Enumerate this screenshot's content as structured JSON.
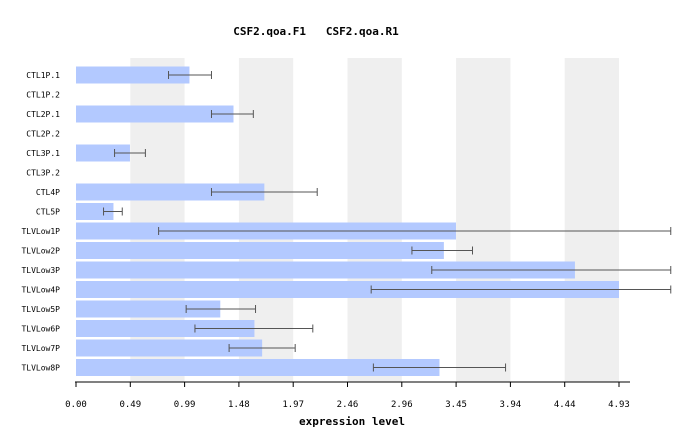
{
  "chart_data": {
    "type": "bar",
    "orientation": "horizontal",
    "title": "CSF2.qoa.F1   CSF2.qoa.R1",
    "xlabel": "expression level",
    "ylabel": "",
    "xlim": [
      0,
      4.93
    ],
    "ticks": [
      "0.00",
      "0.49",
      "0.99",
      "1.48",
      "1.97",
      "2.46",
      "2.96",
      "3.45",
      "3.94",
      "4.44",
      "4.93"
    ],
    "tick_values": [
      0,
      0.493,
      0.986,
      1.479,
      1.972,
      2.465,
      2.958,
      3.451,
      3.944,
      4.437,
      4.93
    ],
    "categories": [
      "CTL1P.1",
      "CTL1P.2",
      "CTL2P.1",
      "CTL2P.2",
      "CTL3P.1",
      "CTL3P.2",
      "CTL4P",
      "CTL5P",
      "TLVLow1P",
      "TLVLow2P",
      "TLVLow3P",
      "TLVLow4P",
      "TLVLow5P",
      "TLVLow6P",
      "TLVLow7P",
      "TLVLow8P"
    ],
    "values": [
      1.03,
      null,
      1.43,
      null,
      0.49,
      null,
      1.71,
      0.34,
      3.45,
      3.34,
      4.53,
      4.93,
      1.31,
      1.62,
      1.69,
      3.3
    ],
    "error_low": [
      0.84,
      null,
      1.23,
      null,
      0.35,
      null,
      1.23,
      0.25,
      0.75,
      3.05,
      3.23,
      2.68,
      1.0,
      1.08,
      1.39,
      2.7
    ],
    "error_high": [
      1.23,
      null,
      1.61,
      null,
      0.63,
      null,
      2.19,
      0.42,
      5.4,
      3.6,
      5.4,
      5.4,
      1.63,
      2.15,
      1.99,
      3.9
    ],
    "colors": {
      "bar": "#b3c9ff",
      "band": "#efefef",
      "error": "#555555",
      "axis": "#000000"
    }
  }
}
